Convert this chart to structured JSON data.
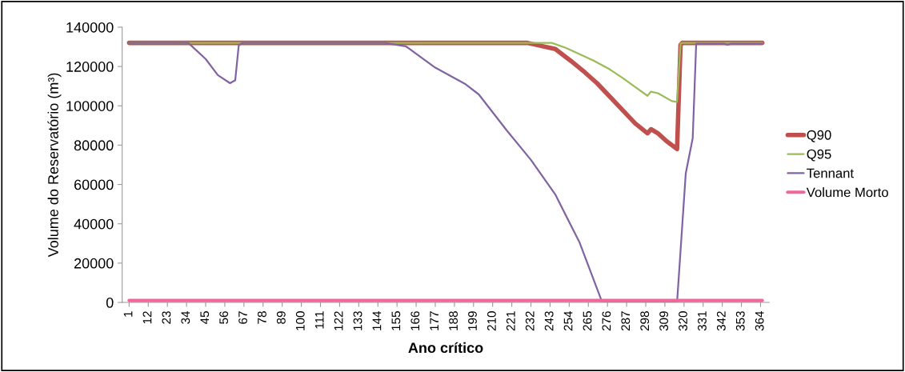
{
  "chart_data": {
    "type": "line",
    "xlabel": "Ano crítico",
    "ylabel": "Volume do Reservatório (m³)",
    "xlim": [
      -3,
      369
    ],
    "ylim": [
      0,
      140000
    ],
    "xticks": [
      1,
      12,
      23,
      34,
      45,
      56,
      67,
      78,
      89,
      100,
      111,
      122,
      133,
      144,
      155,
      166,
      177,
      188,
      199,
      210,
      221,
      232,
      243,
      254,
      265,
      276,
      287,
      298,
      309,
      320,
      331,
      342,
      353,
      364
    ],
    "yticks": [
      0,
      20000,
      40000,
      60000,
      80000,
      100000,
      120000,
      140000
    ],
    "grid": false,
    "legend": "right",
    "marker": "none",
    "line_style": "solid",
    "series": [
      {
        "name": "Q90",
        "color": "#c0504d",
        "x": [
          1,
          230,
          246,
          255,
          263,
          270,
          277,
          285,
          292,
          299,
          301,
          305,
          310,
          316,
          318,
          319,
          365
        ],
        "values": [
          132000,
          132000,
          128900,
          122800,
          117000,
          111500,
          105000,
          97500,
          91000,
          86000,
          88100,
          86000,
          82000,
          78000,
          131000,
          132000,
          132000
        ]
      },
      {
        "name": "Q95",
        "color": "#9bbb59",
        "x": [
          1,
          244,
          252,
          260,
          268,
          277,
          285,
          292,
          299,
          301,
          305,
          313,
          316,
          318,
          319,
          365
        ],
        "values": [
          132000,
          132000,
          129500,
          126200,
          123000,
          118700,
          114000,
          109500,
          105100,
          107200,
          106400,
          102400,
          102000,
          131600,
          132000,
          132000
        ]
      },
      {
        "name": "Tennant",
        "color": "#8064a2",
        "x": [
          1,
          35,
          45,
          52,
          59,
          62,
          64,
          66,
          148,
          160,
          177,
          194,
          202,
          218,
          232,
          246,
          260,
          273,
          316,
          321,
          325,
          327,
          343,
          345,
          347,
          365
        ],
        "values": [
          132000,
          132000,
          123800,
          115600,
          111500,
          113000,
          130700,
          132000,
          132000,
          130300,
          119400,
          111200,
          105800,
          87600,
          72500,
          54900,
          30400,
          0,
          0,
          65600,
          83500,
          131600,
          131600,
          131000,
          131600,
          131600
        ]
      },
      {
        "name": "Volume Morto",
        "color": "#f0679b",
        "x": [
          1,
          365
        ],
        "values": [
          1000,
          1000
        ]
      }
    ]
  }
}
